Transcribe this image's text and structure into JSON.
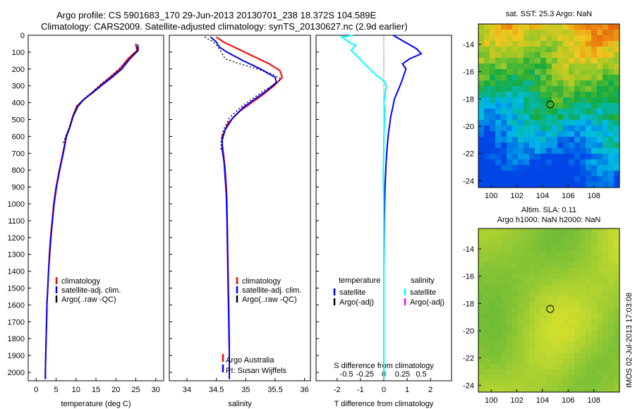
{
  "header": {
    "line1": "Argo profile: CS 5901683_170 29-Jun-2013 20130701_238 18.372S 104.589E",
    "line2": "Climatology: CARS2009. Satellite-adjusted climatology: synTS_20130627.nc (2.9d earlier)"
  },
  "colors": {
    "climatology": "#ff0000",
    "satellite": "#0000ff",
    "argo": "#000000",
    "salinity_satellite": "#00ffff",
    "salinity_argo": "#ff00ff"
  },
  "chart_data": [
    {
      "type": "line",
      "id": "temperature",
      "xlabel": "temperature (deg C)",
      "xticks": [
        0,
        5,
        10,
        15,
        20,
        25,
        30
      ],
      "xlim": [
        -2,
        32
      ],
      "ylim": [
        0,
        2050
      ],
      "yticks": [
        0,
        100,
        200,
        300,
        400,
        500,
        600,
        700,
        800,
        900,
        1000,
        1100,
        1200,
        1300,
        1400,
        1500,
        1600,
        1700,
        1800,
        1900,
        2000
      ],
      "legend": [
        "climatology",
        "satellite-adj. clim.",
        "Argo(..raw -QC)"
      ],
      "series": [
        {
          "name": "climatology",
          "color": "#ff0000",
          "points": [
            [
              25,
              55
            ],
            [
              25.3,
              90
            ],
            [
              23,
              140
            ],
            [
              21,
              200
            ],
            [
              18.5,
              250
            ],
            [
              16.5,
              290
            ],
            [
              14,
              340
            ],
            [
              12,
              380
            ],
            [
              10.2,
              420
            ],
            [
              9.2,
              480
            ],
            [
              8.3,
              550
            ],
            [
              7.5,
              600
            ],
            [
              6.7,
              700
            ],
            [
              5.8,
              800
            ],
            [
              5,
              900
            ],
            [
              4.4,
              1000
            ],
            [
              4,
              1100
            ],
            [
              3.6,
              1200
            ],
            [
              3.3,
              1300
            ],
            [
              3.1,
              1400
            ],
            [
              2.9,
              1500
            ],
            [
              2.7,
              1600
            ],
            [
              2.6,
              1700
            ],
            [
              2.5,
              1800
            ],
            [
              2.4,
              1900
            ],
            [
              2.3,
              2000
            ],
            [
              2.3,
              2040
            ]
          ]
        },
        {
          "name": "satellite-adj. clim.",
          "color": "#0000ff",
          "points": [
            [
              25.5,
              55
            ],
            [
              25.6,
              90
            ],
            [
              23.5,
              140
            ],
            [
              21.5,
              200
            ],
            [
              19,
              250
            ],
            [
              16.8,
              290
            ],
            [
              14.2,
              340
            ],
            [
              12,
              380
            ],
            [
              10.5,
              420
            ],
            [
              9.3,
              480
            ],
            [
              8.4,
              550
            ],
            [
              7.6,
              600
            ],
            [
              6.8,
              700
            ],
            [
              5.9,
              800
            ],
            [
              5.1,
              900
            ],
            [
              4.5,
              1000
            ],
            [
              4.1,
              1100
            ],
            [
              3.7,
              1200
            ],
            [
              3.4,
              1300
            ],
            [
              3.1,
              1400
            ],
            [
              2.9,
              1500
            ],
            [
              2.7,
              1600
            ],
            [
              2.6,
              1700
            ],
            [
              2.5,
              1800
            ],
            [
              2.4,
              1900
            ],
            [
              2.3,
              2000
            ],
            [
              2.3,
              2040
            ]
          ]
        },
        {
          "name": "Argo(..raw -QC)",
          "color": "#000000",
          "dotted": true,
          "points": [
            [
              25,
              50
            ],
            [
              25.4,
              90
            ],
            [
              23.2,
              145
            ],
            [
              20.8,
              200
            ],
            [
              18.4,
              250
            ],
            [
              16.2,
              290
            ],
            [
              14,
              340
            ],
            [
              11.8,
              380
            ],
            [
              10.3,
              420
            ],
            [
              9.2,
              480
            ],
            [
              8.3,
              550
            ],
            [
              7.4,
              600
            ],
            [
              6.6,
              650
            ]
          ]
        }
      ]
    },
    {
      "type": "line",
      "id": "salinity",
      "xlabel": "salinity",
      "xticks": [
        34,
        34.5,
        35,
        35.5,
        36
      ],
      "xlim": [
        33.7,
        36.1
      ],
      "ylim": [
        0,
        2050
      ],
      "legend": [
        "climatology",
        "satellite-adj. clim.",
        "Argo(..raw -QC)"
      ],
      "series": [
        {
          "name": "climatology",
          "color": "#ff0000",
          "points": [
            [
              34.5,
              10
            ],
            [
              34.62,
              40
            ],
            [
              34.8,
              70
            ],
            [
              35.1,
              120
            ],
            [
              35.4,
              170
            ],
            [
              35.58,
              210
            ],
            [
              35.62,
              250
            ],
            [
              35.48,
              300
            ],
            [
              35.3,
              350
            ],
            [
              35.1,
              400
            ],
            [
              34.9,
              450
            ],
            [
              34.7,
              520
            ],
            [
              34.6,
              600
            ],
            [
              34.6,
              650
            ],
            [
              34.62,
              700
            ],
            [
              34.65,
              800
            ],
            [
              34.67,
              900
            ],
            [
              34.68,
              1000
            ],
            [
              34.69,
              1200
            ],
            [
              34.7,
              1400
            ],
            [
              34.71,
              1600
            ],
            [
              34.72,
              1800
            ],
            [
              34.72,
              2000
            ],
            [
              34.72,
              2040
            ]
          ]
        },
        {
          "name": "satellite-adj. clim.",
          "color": "#0000ff",
          "points": [
            [
              34.4,
              10
            ],
            [
              34.5,
              40
            ],
            [
              34.55,
              70
            ],
            [
              34.68,
              100
            ],
            [
              34.95,
              150
            ],
            [
              35.25,
              200
            ],
            [
              35.5,
              250
            ],
            [
              35.52,
              280
            ],
            [
              35.35,
              330
            ],
            [
              35.15,
              380
            ],
            [
              34.95,
              430
            ],
            [
              34.78,
              490
            ],
            [
              34.65,
              560
            ],
            [
              34.6,
              620
            ],
            [
              34.6,
              680
            ],
            [
              34.63,
              750
            ],
            [
              34.65,
              850
            ],
            [
              34.67,
              950
            ],
            [
              34.68,
              1100
            ],
            [
              34.69,
              1300
            ],
            [
              34.7,
              1500
            ],
            [
              34.71,
              1700
            ],
            [
              34.72,
              1900
            ],
            [
              34.72,
              2040
            ]
          ]
        },
        {
          "name": "Argo(..raw -QC)",
          "color": "#000000",
          "dotted": true,
          "points": [
            [
              34.3,
              10
            ],
            [
              34.45,
              40
            ],
            [
              34.55,
              80
            ],
            [
              34.65,
              140
            ],
            [
              34.9,
              170
            ],
            [
              35.2,
              200
            ],
            [
              35.45,
              230
            ],
            [
              35.6,
              260
            ],
            [
              35.5,
              290
            ],
            [
              35.3,
              330
            ],
            [
              35.1,
              380
            ],
            [
              34.9,
              430
            ],
            [
              34.72,
              490
            ],
            [
              34.62,
              560
            ],
            [
              34.58,
              620
            ],
            [
              34.58,
              680
            ]
          ]
        }
      ],
      "annotation": {
        "line1": "Argo Australia",
        "line2": "PI: Susan Wijffels"
      }
    },
    {
      "type": "line",
      "id": "difference",
      "xlabel": "T difference from climatology",
      "xlabel_top": "S difference from climatology",
      "xticks": [
        -2,
        -1,
        0,
        1,
        2
      ],
      "xticks_top": [
        "-0.5",
        "-0.25",
        "0",
        "0.25",
        "0.5"
      ],
      "xlim": [
        -2.9,
        2.9
      ],
      "ylim": [
        0,
        2050
      ],
      "legend": {
        "temperature_title": "temperature",
        "salinity_title": "salinity",
        "temperature": [
          "satellite",
          "Argo(-adj)"
        ],
        "salinity": [
          "satellite",
          "Argo(-adj)"
        ]
      },
      "series": [
        {
          "name": "T satellite",
          "color": "#0000ff",
          "points": [
            [
              0.4,
              0
            ],
            [
              0.9,
              40
            ],
            [
              1.4,
              80
            ],
            [
              1.6,
              110
            ],
            [
              1.1,
              140
            ],
            [
              0.8,
              170
            ],
            [
              0.95,
              200
            ],
            [
              0.85,
              240
            ],
            [
              0.75,
              280
            ],
            [
              0.6,
              330
            ],
            [
              0.45,
              380
            ],
            [
              0.38,
              430
            ],
            [
              0.3,
              480
            ],
            [
              0.25,
              530
            ],
            [
              0.2,
              580
            ],
            [
              0.15,
              650
            ],
            [
              0.1,
              750
            ],
            [
              0.05,
              900
            ],
            [
              0.02,
              1100
            ],
            [
              0,
              1400
            ],
            [
              0,
              1700
            ],
            [
              0,
              2000
            ],
            [
              0,
              2040
            ]
          ]
        },
        {
          "name": "S satellite",
          "color": "#00ffff",
          "points": [
            [
              -1.3,
              0
            ],
            [
              -1.8,
              10
            ],
            [
              -1.5,
              40
            ],
            [
              -1.2,
              60
            ],
            [
              -1.4,
              90
            ],
            [
              -1.1,
              130
            ],
            [
              -0.9,
              160
            ],
            [
              -0.6,
              200
            ],
            [
              -0.3,
              240
            ],
            [
              0,
              270
            ],
            [
              0.1,
              300
            ],
            [
              0.05,
              350
            ],
            [
              0,
              400
            ],
            [
              0.05,
              450
            ],
            [
              0.03,
              500
            ],
            [
              0,
              600
            ],
            [
              0,
              700
            ],
            [
              -0.02,
              800
            ],
            [
              0,
              1000
            ],
            [
              0,
              1300
            ],
            [
              0,
              1700
            ],
            [
              0,
              2040
            ]
          ]
        }
      ]
    }
  ],
  "maps": [
    {
      "id": "sst",
      "title": "sat. SST: 25.3 Argo: NaN",
      "yticks": [
        "-14",
        "-16",
        "-18",
        "-20",
        "-22",
        "-24"
      ],
      "xticks": [
        "100",
        "102",
        "104",
        "106",
        "108"
      ],
      "lon_range": [
        99,
        110
      ],
      "lat_range": [
        -24.5,
        -12.5
      ],
      "marker": {
        "lon": 104.6,
        "lat": -18.4
      }
    },
    {
      "id": "sla",
      "title_line1": "Altim. SLA: 0.11",
      "title_line2": "Argo h1000: NaN h2000: NaN",
      "yticks": [
        "-14",
        "-16",
        "-18",
        "-20",
        "-22",
        "-24"
      ],
      "xticks": [
        "100",
        "102",
        "104",
        "106",
        "108"
      ],
      "lon_range": [
        99,
        110
      ],
      "lat_range": [
        -24.5,
        -12.5
      ],
      "marker": {
        "lon": 104.6,
        "lat": -18.4
      }
    }
  ],
  "watermark": "IMOS 02-Jul-2013 17:03:08"
}
